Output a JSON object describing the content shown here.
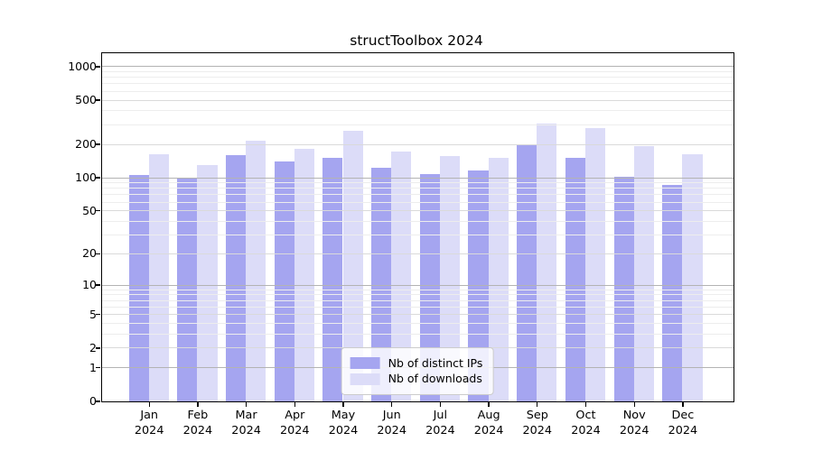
{
  "figure": {
    "title": "structToolbox 2024"
  },
  "chart_data": {
    "type": "bar",
    "title": "structToolbox 2024",
    "categories": [
      "Jan",
      "Feb",
      "Mar",
      "Apr",
      "May",
      "Jun",
      "Jul",
      "Aug",
      "Sep",
      "Oct",
      "Nov",
      "Dec"
    ],
    "year": "2024",
    "series": [
      {
        "name": "Nb of distinct IPs",
        "color": "#a5a5f0",
        "values": [
          104,
          98,
          158,
          140,
          151,
          122,
          107,
          116,
          194,
          151,
          102,
          85
        ]
      },
      {
        "name": "Nb of downloads",
        "color": "#dcdcf8",
        "values": [
          163,
          128,
          213,
          182,
          265,
          172,
          156,
          149,
          306,
          277,
          190,
          163
        ]
      }
    ],
    "yscale": "log(1+y)",
    "ylim": [
      0,
      1318
    ],
    "yticks": [
      0,
      1,
      2,
      5,
      10,
      20,
      50,
      100,
      200,
      500,
      1000
    ],
    "ytick_major": [
      1,
      10,
      100,
      1000
    ],
    "yminor": [
      3,
      4,
      6,
      7,
      8,
      9,
      30,
      40,
      60,
      70,
      80,
      90,
      300,
      400,
      600,
      700,
      800,
      900
    ],
    "grid": "horizontal",
    "legend": {
      "position": "lower center"
    },
    "colors": {
      "major_grid": "#b3b3b3",
      "labeled_grid": "#dadada",
      "minor_grid": "#ededed",
      "spine": "#000000",
      "background": "#ffffff"
    }
  }
}
